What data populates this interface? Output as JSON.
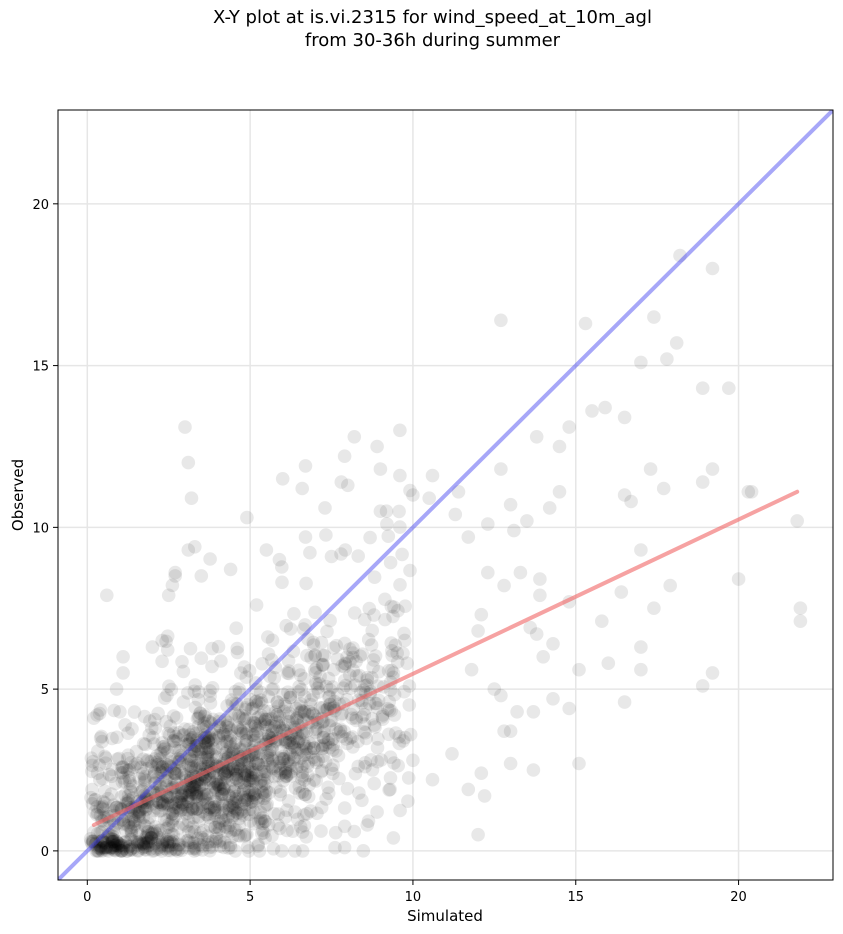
{
  "title_line1": "X-Y plot at is.vi.2315 for wind_speed_at_10m_agl",
  "title_line2": "from 30-36h during summer",
  "chart_data": {
    "type": "scatter",
    "title": "X-Y plot at is.vi.2315 for wind_speed_at_10m_agl\nfrom 30-36h during summer",
    "xlabel": "Simulated",
    "ylabel": "Observed",
    "xlim": [
      -0.9,
      22.9
    ],
    "ylim": [
      -0.9,
      22.9
    ],
    "xticks": [
      0,
      5,
      10,
      15,
      20
    ],
    "yticks": [
      0,
      5,
      10,
      15,
      20
    ],
    "grid": true,
    "colors": {
      "points": "#000000",
      "identity_line": "#3c3cf0",
      "fit_line": "#f06464"
    },
    "identity_line": {
      "x": [
        -0.9,
        22.9
      ],
      "y": [
        -0.9,
        22.9
      ]
    },
    "fit_line": {
      "x": [
        0.2,
        21.8
      ],
      "y": [
        0.8,
        11.1
      ]
    },
    "series": [
      {
        "values": [
          [
            0.2,
            4.1
          ],
          [
            0.3,
            4.2
          ],
          [
            0.6,
            7.9
          ],
          [
            0.9,
            5.0
          ],
          [
            1.0,
            4.3
          ],
          [
            1.1,
            6.0
          ],
          [
            1.1,
            5.5
          ],
          [
            2.0,
            6.3
          ],
          [
            2.3,
            6.5
          ],
          [
            2.5,
            7.9
          ],
          [
            2.7,
            8.6
          ],
          [
            2.7,
            8.5
          ],
          [
            3.0,
            13.1
          ],
          [
            3.1,
            12.0
          ],
          [
            3.2,
            10.9
          ],
          [
            3.3,
            9.4
          ],
          [
            3.1,
            9.3
          ],
          [
            3.5,
            8.5
          ],
          [
            4.4,
            8.7
          ],
          [
            4.9,
            10.3
          ],
          [
            5.2,
            7.6
          ],
          [
            5.5,
            9.3
          ],
          [
            5.9,
            9.0
          ],
          [
            6.0,
            11.5
          ],
          [
            6.6,
            11.2
          ],
          [
            6.7,
            11.9
          ],
          [
            6.7,
            9.7
          ],
          [
            7.3,
            10.6
          ],
          [
            7.5,
            9.1
          ],
          [
            7.8,
            11.4
          ],
          [
            7.9,
            12.2
          ],
          [
            8.2,
            12.8
          ],
          [
            8.0,
            11.3
          ],
          [
            8.9,
            12.5
          ],
          [
            9.0,
            11.8
          ],
          [
            9.6,
            13.0
          ],
          [
            9.6,
            11.6
          ],
          [
            9.2,
            10.1
          ],
          [
            9.0,
            10.5
          ],
          [
            10.0,
            11.0
          ],
          [
            10.6,
            11.6
          ],
          [
            10.5,
            10.9
          ],
          [
            11.4,
            11.1
          ],
          [
            11.3,
            10.4
          ],
          [
            11.7,
            9.7
          ],
          [
            12.3,
            10.1
          ],
          [
            12.7,
            11.8
          ],
          [
            12.7,
            16.4
          ],
          [
            13.0,
            10.7
          ],
          [
            13.1,
            9.9
          ],
          [
            13.5,
            10.2
          ],
          [
            13.8,
            12.8
          ],
          [
            14.2,
            10.6
          ],
          [
            14.5,
            11.1
          ],
          [
            14.5,
            12.5
          ],
          [
            14.8,
            13.1
          ],
          [
            15.3,
            16.3
          ],
          [
            15.5,
            13.6
          ],
          [
            15.9,
            13.7
          ],
          [
            16.5,
            13.4
          ],
          [
            17.0,
            15.1
          ],
          [
            17.4,
            16.5
          ],
          [
            17.8,
            15.2
          ],
          [
            18.1,
            15.7
          ],
          [
            18.2,
            18.4
          ],
          [
            19.2,
            18.0
          ],
          [
            18.9,
            14.3
          ],
          [
            19.7,
            14.3
          ],
          [
            17.3,
            11.8
          ],
          [
            17.7,
            11.2
          ],
          [
            19.2,
            11.8
          ],
          [
            18.9,
            11.4
          ],
          [
            20.3,
            11.1
          ],
          [
            20.4,
            11.1
          ],
          [
            16.5,
            11.0
          ],
          [
            16.7,
            10.8
          ],
          [
            17.0,
            9.3
          ],
          [
            17.9,
            8.2
          ],
          [
            17.4,
            7.5
          ],
          [
            16.4,
            8.0
          ],
          [
            15.8,
            7.1
          ],
          [
            14.8,
            7.7
          ],
          [
            15.1,
            5.6
          ],
          [
            16.0,
            5.8
          ],
          [
            16.5,
            4.6
          ],
          [
            14.8,
            4.4
          ],
          [
            14.3,
            4.7
          ],
          [
            15.1,
            2.7
          ],
          [
            17.0,
            5.6
          ],
          [
            17.0,
            6.3
          ],
          [
            18.9,
            5.1
          ],
          [
            19.2,
            5.5
          ],
          [
            20.0,
            8.4
          ],
          [
            21.8,
            10.2
          ],
          [
            21.9,
            7.5
          ],
          [
            21.9,
            7.1
          ],
          [
            14.0,
            6.0
          ],
          [
            14.3,
            6.4
          ],
          [
            13.8,
            6.7
          ],
          [
            13.6,
            6.9
          ],
          [
            13.9,
            7.9
          ],
          [
            13.9,
            8.4
          ],
          [
            13.3,
            8.6
          ],
          [
            12.8,
            8.2
          ],
          [
            12.3,
            8.6
          ],
          [
            12.1,
            7.3
          ],
          [
            12.0,
            6.8
          ],
          [
            11.8,
            5.6
          ],
          [
            12.5,
            5.0
          ],
          [
            12.7,
            4.8
          ],
          [
            12.8,
            3.7
          ],
          [
            13.0,
            3.7
          ],
          [
            13.2,
            4.3
          ],
          [
            13.7,
            4.3
          ],
          [
            13.7,
            2.5
          ],
          [
            13.0,
            2.7
          ],
          [
            12.1,
            2.4
          ],
          [
            12.2,
            1.7
          ],
          [
            11.7,
            1.9
          ],
          [
            12.0,
            0.5
          ],
          [
            11.2,
            3.0
          ],
          [
            10.6,
            2.2
          ],
          [
            10.0,
            2.8
          ],
          [
            9.7,
            3.4
          ],
          [
            9.3,
            1.9
          ],
          [
            9.4,
            0.4
          ],
          [
            8.9,
            1.2
          ],
          [
            8.6,
            0.8
          ],
          [
            8.2,
            0.6
          ],
          [
            7.9,
            0.1
          ]
        ]
      }
    ],
    "dense_cloud": {
      "note_x_range": [
        0.1,
        10.0
      ],
      "density_peak": [
        3.5,
        2.2
      ]
    }
  }
}
